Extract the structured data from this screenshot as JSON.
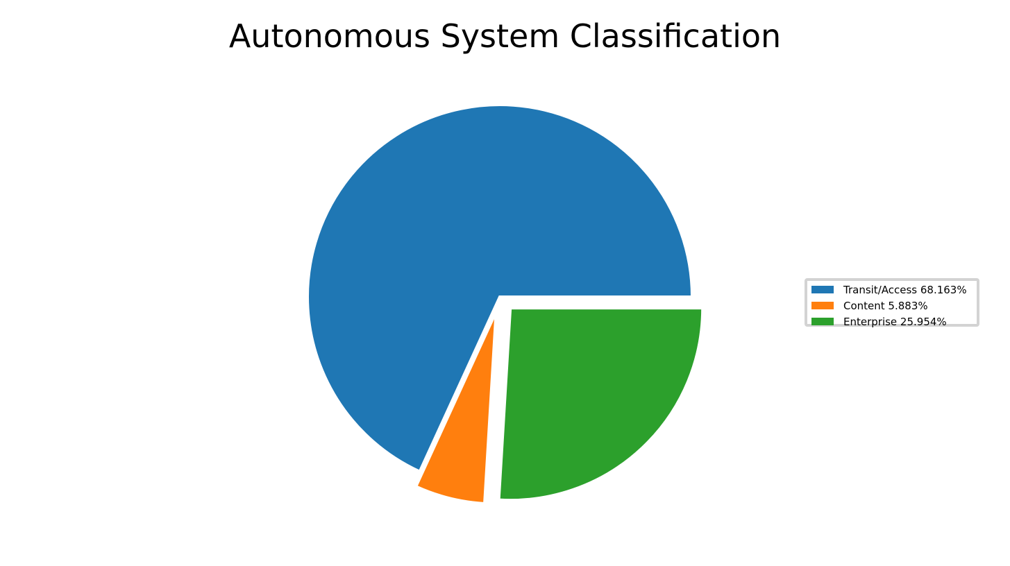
{
  "chart_data": {
    "type": "pie",
    "title": "Autonomous System Classification",
    "slices": [
      {
        "label": "Transit/Access",
        "value": 68.163,
        "legend_text": "Transit/Access 68.163%",
        "color": "#1f77b4",
        "exploded": false
      },
      {
        "label": "Content",
        "value": 5.883,
        "legend_text": "Content 5.883%",
        "color": "#ff7f0e",
        "exploded": true
      },
      {
        "label": "Enterprise",
        "value": 25.954,
        "legend_text": "Enterprise 25.954%",
        "color": "#2ca02c",
        "exploded": true
      }
    ],
    "start_angle_deg": 0,
    "direction": "counterclockwise",
    "legend_position": "center-right",
    "edge_color": "#ffffff"
  }
}
